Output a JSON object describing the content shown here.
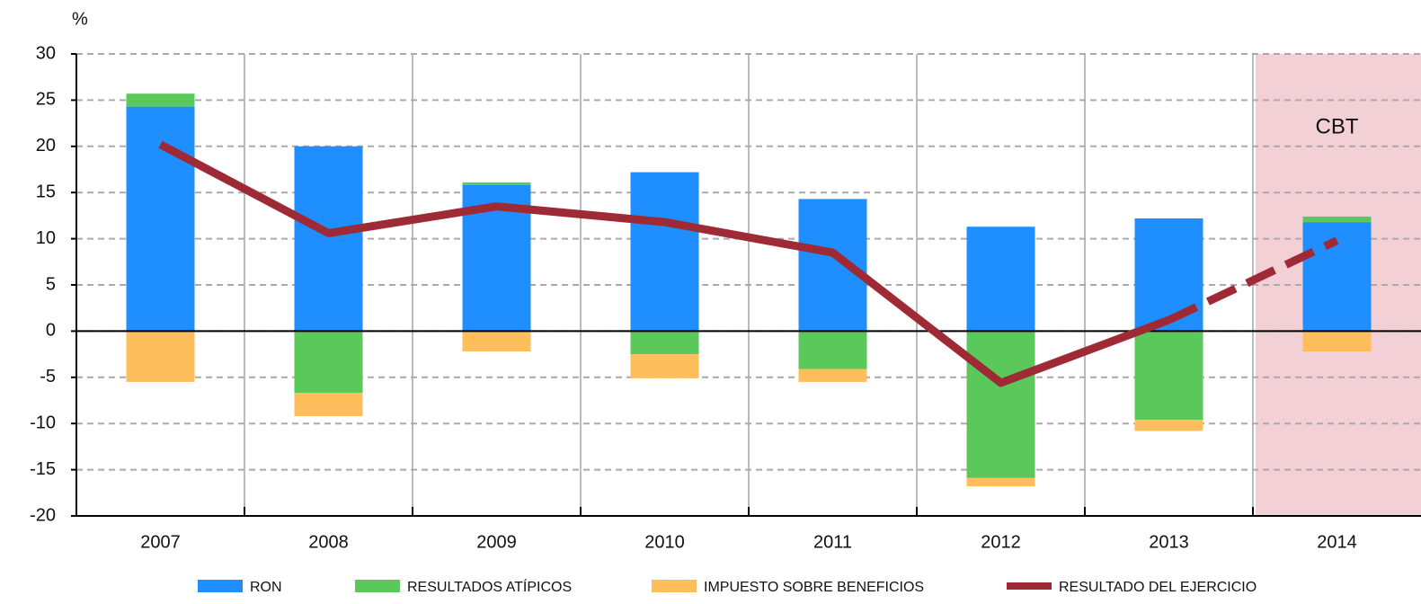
{
  "chart_data": {
    "type": "bar",
    "stacked": true,
    "y_label": "%",
    "categories": [
      "2007",
      "2008",
      "2009",
      "2010",
      "2011",
      "2012",
      "2013",
      "2014"
    ],
    "series": [
      {
        "name": "RON",
        "color": "#1f8fff",
        "values": [
          24.3,
          20.0,
          15.8,
          17.2,
          14.3,
          11.3,
          12.2,
          11.8
        ]
      },
      {
        "name": "RESULTADOS ATÍPICOS",
        "color": "#5bc85b",
        "values": [
          1.4,
          -6.7,
          0.3,
          -2.5,
          -4.1,
          -15.9,
          -9.6,
          0.6
        ]
      },
      {
        "name": "IMPUESTO SOBRE BENEFICIOS",
        "color": "#ffbe5c",
        "values": [
          -5.5,
          -2.5,
          -2.2,
          -2.6,
          -1.4,
          -0.9,
          -1.2,
          -2.2
        ]
      },
      {
        "name": "RESULTADO DEL EJERCICIO",
        "type": "line",
        "color": "#9e2a35",
        "dashed_from": 6,
        "values": [
          20.2,
          10.6,
          13.5,
          11.8,
          8.5,
          -5.6,
          1.2,
          9.8
        ]
      }
    ],
    "shaded": {
      "category": "2014",
      "label": "CBT",
      "color": "#f2d0d6"
    },
    "ylim": [
      -20,
      30
    ],
    "yticks": [
      -20,
      -15,
      -10,
      -5,
      0,
      5,
      10,
      15,
      20,
      25,
      30
    ],
    "grid": true,
    "legend": "bottom"
  }
}
